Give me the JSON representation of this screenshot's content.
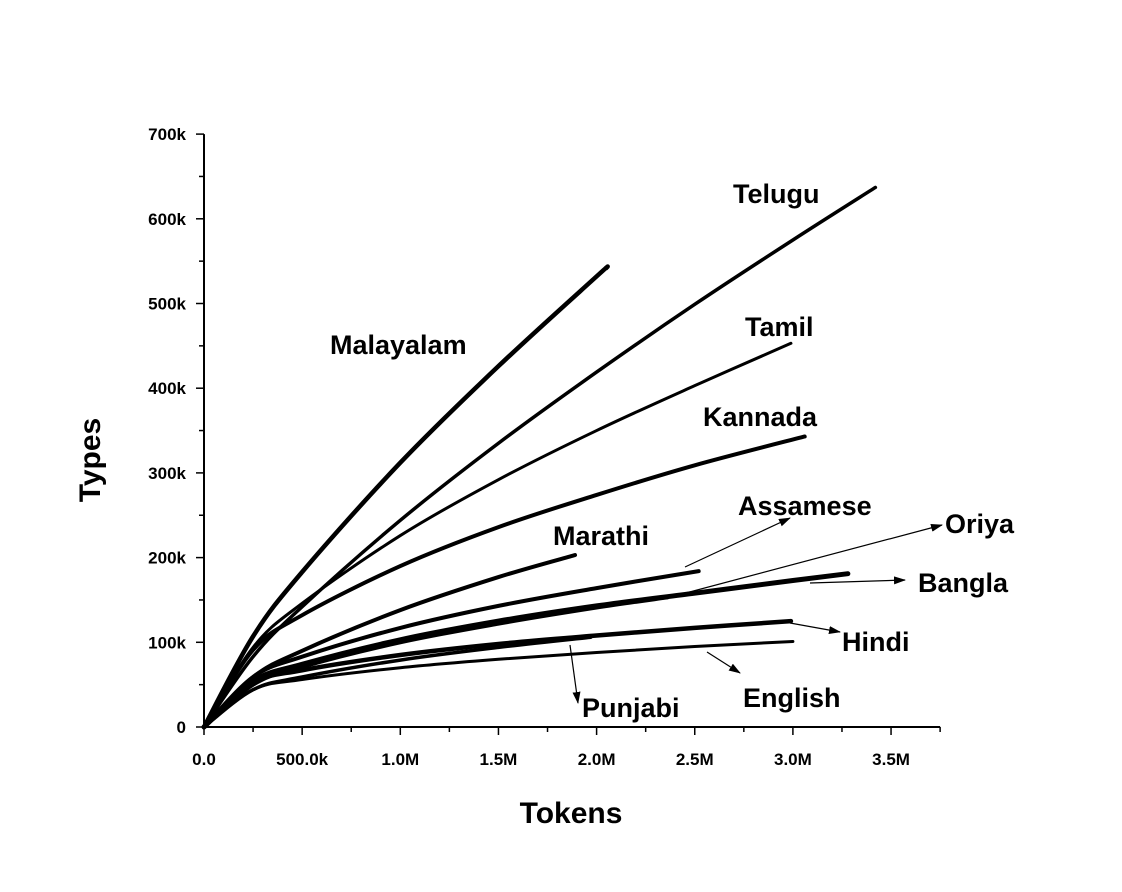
{
  "chart_data": {
    "type": "line",
    "title": "",
    "xlabel": "Tokens",
    "ylabel": "Types",
    "xlim": [
      0,
      3750000
    ],
    "ylim": [
      0,
      700000
    ],
    "x_ticks": [
      0,
      500000,
      1000000,
      1500000,
      2000000,
      2500000,
      3000000,
      3500000
    ],
    "x_tick_labels": [
      "0.0",
      "500.0k",
      "1.0M",
      "1.5M",
      "2.0M",
      "2.5M",
      "3.0M",
      "3.5M"
    ],
    "y_ticks": [
      0,
      100000,
      200000,
      300000,
      400000,
      500000,
      600000,
      700000
    ],
    "y_tick_labels": [
      "0",
      "100k",
      "200k",
      "300k",
      "400k",
      "500k",
      "600k",
      "700k"
    ],
    "grid": false,
    "legend": "none (curves labelled directly)",
    "line_color": "#000000",
    "series": [
      {
        "name": "Malayalam",
        "points": [
          [
            0,
            0
          ],
          [
            250000,
            107000
          ],
          [
            500000,
            183000
          ],
          [
            1000000,
            312000
          ],
          [
            1500000,
            426000
          ],
          [
            2000000,
            532000
          ],
          [
            2050000,
            542000
          ]
        ]
      },
      {
        "name": "Telugu",
        "points": [
          [
            0,
            0
          ],
          [
            250000,
            83000
          ],
          [
            500000,
            142000
          ],
          [
            1000000,
            244000
          ],
          [
            1500000,
            335000
          ],
          [
            2000000,
            419000
          ],
          [
            2500000,
            499000
          ],
          [
            3000000,
            575000
          ],
          [
            3420000,
            637000
          ]
        ]
      },
      {
        "name": "Tamil",
        "points": [
          [
            0,
            0
          ],
          [
            250000,
            94000
          ],
          [
            500000,
            146000
          ],
          [
            1000000,
            226000
          ],
          [
            1500000,
            292000
          ],
          [
            2000000,
            350000
          ],
          [
            2500000,
            403000
          ],
          [
            2990000,
            453000
          ]
        ]
      },
      {
        "name": "Kannada",
        "points": [
          [
            0,
            0
          ],
          [
            250000,
            91000
          ],
          [
            500000,
            132000
          ],
          [
            1000000,
            190000
          ],
          [
            1500000,
            236000
          ],
          [
            2000000,
            274000
          ],
          [
            2500000,
            309000
          ],
          [
            3060000,
            343000
          ]
        ]
      },
      {
        "name": "Marathi",
        "points": [
          [
            0,
            0
          ],
          [
            250000,
            59000
          ],
          [
            500000,
            90000
          ],
          [
            1000000,
            138000
          ],
          [
            1500000,
            177000
          ],
          [
            1890000,
            203000
          ]
        ]
      },
      {
        "name": "Assamese",
        "points": [
          [
            0,
            0
          ],
          [
            250000,
            59000
          ],
          [
            500000,
            83000
          ],
          [
            1000000,
            117000
          ],
          [
            1500000,
            143000
          ],
          [
            2000000,
            164000
          ],
          [
            2520000,
            184000
          ]
        ]
      },
      {
        "name": "Oriya",
        "points": [
          [
            0,
            0
          ],
          [
            250000,
            50000
          ],
          [
            500000,
            71000
          ],
          [
            1000000,
            100000
          ],
          [
            1500000,
            122000
          ],
          [
            2000000,
            141000
          ],
          [
            2360000,
            153000
          ]
        ]
      },
      {
        "name": "Bangla",
        "points": [
          [
            0,
            0
          ],
          [
            250000,
            54000
          ],
          [
            500000,
            74000
          ],
          [
            1000000,
            103000
          ],
          [
            1500000,
            125000
          ],
          [
            2000000,
            143000
          ],
          [
            2500000,
            158000
          ],
          [
            3000000,
            173000
          ],
          [
            3280000,
            181000
          ]
        ]
      },
      {
        "name": "Hindi",
        "points": [
          [
            0,
            0
          ],
          [
            250000,
            52000
          ],
          [
            500000,
            67000
          ],
          [
            1000000,
            85000
          ],
          [
            1500000,
            98000
          ],
          [
            2000000,
            108000
          ],
          [
            2500000,
            117000
          ],
          [
            2990000,
            125000
          ]
        ]
      },
      {
        "name": "Punjabi",
        "points": [
          [
            0,
            0
          ],
          [
            250000,
            44000
          ],
          [
            500000,
            59000
          ],
          [
            1000000,
            79000
          ],
          [
            1500000,
            94000
          ],
          [
            1970000,
            106000
          ]
        ]
      },
      {
        "name": "English",
        "points": [
          [
            0,
            0
          ],
          [
            250000,
            44000
          ],
          [
            500000,
            56000
          ],
          [
            1000000,
            70000
          ],
          [
            1500000,
            80000
          ],
          [
            2000000,
            88000
          ],
          [
            2500000,
            95000
          ],
          [
            3000000,
            101000
          ]
        ]
      }
    ]
  }
}
